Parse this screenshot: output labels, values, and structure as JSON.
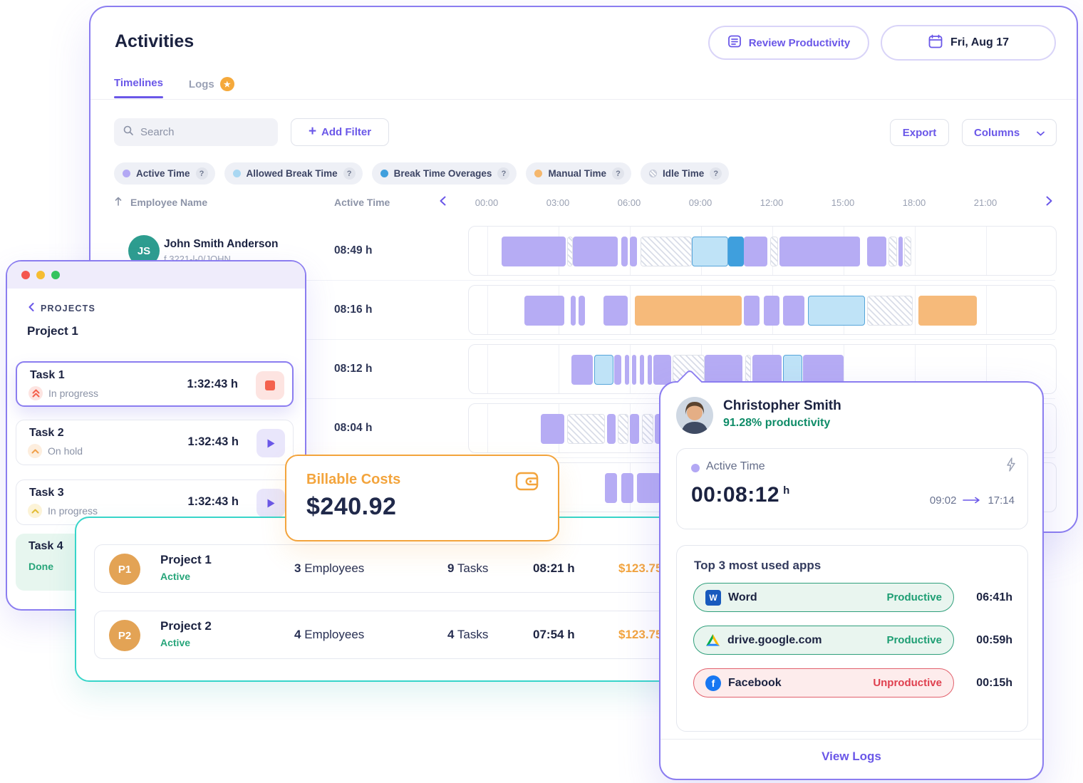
{
  "colors": {
    "accent_purple": "#6a57e8",
    "active_time": "#b6acf4",
    "allowed_break": "#a9d7f2",
    "break_overage": "#3f9fdd",
    "manual_time": "#f5b76d",
    "billable_orange": "#f3a43c",
    "teal_border": "#37d5c9",
    "green": "#27a57a",
    "red": "#df3f4e"
  },
  "page": {
    "title": "Activities"
  },
  "header": {
    "review_button": "Review Productivity",
    "date_button": "Fri, Aug 17"
  },
  "tabs": [
    {
      "label": "Timelines",
      "active": true
    },
    {
      "label": "Logs",
      "badge": "star"
    }
  ],
  "toolbar": {
    "search_placeholder": "Search",
    "add_filter": "Add Filter",
    "export": "Export",
    "columns": "Columns"
  },
  "legend": [
    {
      "label": "Active Time",
      "color": "#b3a8f4"
    },
    {
      "label": "Allowed Break Time",
      "color": "#a9d7f2"
    },
    {
      "label": "Break Time Overages",
      "color": "#3f9fdd"
    },
    {
      "label": "Manual Time",
      "color": "#f5b76d"
    },
    {
      "label": "Idle Time",
      "hatch": true
    }
  ],
  "timeline_table": {
    "columns": {
      "employee": "Employee Name",
      "active_time": "Active Time"
    },
    "hours": [
      "00:00",
      "03:00",
      "06:00",
      "09:00",
      "12:00",
      "15:00",
      "18:00",
      "21:00"
    ],
    "rows": [
      {
        "name": "John Smith Anderson",
        "subtitle": "f.3221-l-0/JOHN",
        "initials": "JS",
        "active_time": "08:49 h",
        "segments": [
          [
            0.6,
            3.3,
            "active"
          ],
          [
            3.35,
            3.6,
            "idle"
          ],
          [
            3.6,
            5.5,
            "active"
          ],
          [
            5.65,
            5.9,
            "active"
          ],
          [
            6.0,
            6.3,
            "active"
          ],
          [
            6.45,
            8.6,
            "idle"
          ],
          [
            8.6,
            10.15,
            "break"
          ],
          [
            10.15,
            10.8,
            "overage"
          ],
          [
            10.8,
            11.8,
            "active"
          ],
          [
            11.9,
            12.25,
            "idle"
          ],
          [
            12.3,
            15.7,
            "active"
          ],
          [
            16.0,
            16.8,
            "active"
          ],
          [
            16.9,
            17.25,
            "idle"
          ],
          [
            17.3,
            17.5,
            "active"
          ],
          [
            17.55,
            17.85,
            "idle"
          ]
        ]
      },
      {
        "active_time": "08:16 h",
        "segments": [
          [
            1.55,
            3.25,
            "active"
          ],
          [
            3.5,
            3.72,
            "active"
          ],
          [
            3.85,
            4.1,
            "active"
          ],
          [
            4.9,
            5.9,
            "active"
          ],
          [
            6.2,
            10.7,
            "manual"
          ],
          [
            10.8,
            11.45,
            "active"
          ],
          [
            11.65,
            12.3,
            "active"
          ],
          [
            12.45,
            13.35,
            "active"
          ],
          [
            13.5,
            15.9,
            "break"
          ],
          [
            16.0,
            17.9,
            "idle"
          ],
          [
            18.15,
            20.6,
            "manual"
          ]
        ]
      },
      {
        "active_time": "08:12 h",
        "segments": [
          [
            3.55,
            4.45,
            "active"
          ],
          [
            4.5,
            5.3,
            "break"
          ],
          [
            5.35,
            5.65,
            "active"
          ],
          [
            5.78,
            5.96,
            "active"
          ],
          [
            6.1,
            6.28,
            "active"
          ],
          [
            6.42,
            6.6,
            "active"
          ],
          [
            6.74,
            6.92,
            "active"
          ],
          [
            7.0,
            7.75,
            "active"
          ],
          [
            7.8,
            9.15,
            "idle"
          ],
          [
            9.15,
            10.75,
            "active"
          ],
          [
            10.85,
            11.1,
            "idle"
          ],
          [
            11.15,
            12.4,
            "active"
          ],
          [
            12.45,
            13.25,
            "break"
          ],
          [
            13.3,
            15.0,
            "active"
          ]
        ]
      },
      {
        "active_time": "08:04 h",
        "segments": [
          [
            2.25,
            3.25,
            "active"
          ],
          [
            3.35,
            4.95,
            "idle"
          ],
          [
            5.05,
            5.4,
            "active"
          ],
          [
            5.5,
            5.95,
            "idle"
          ],
          [
            6.0,
            6.4,
            "active"
          ],
          [
            6.5,
            7.0,
            "idle"
          ],
          [
            7.05,
            7.6,
            "active"
          ]
        ]
      },
      {
        "active_time": "",
        "segments": [
          [
            4.95,
            5.45,
            "active"
          ],
          [
            5.65,
            6.15,
            "active"
          ],
          [
            6.3,
            7.3,
            "active"
          ],
          [
            7.45,
            8.2,
            "active"
          ]
        ]
      }
    ]
  },
  "projects_panel": {
    "back": "PROJECTS",
    "project": "Project 1",
    "tasks": [
      {
        "name": "Task 1",
        "status": "In progress",
        "time": "1:32:43 h",
        "priority": "high",
        "action": "stop",
        "active": true
      },
      {
        "name": "Task 2",
        "status": "On hold",
        "time": "1:32:43 h",
        "priority": "medium",
        "action": "play"
      },
      {
        "name": "Task 3",
        "status": "In progress",
        "time": "1:32:43 h",
        "priority": "low",
        "action": "play"
      },
      {
        "name": "Task 4",
        "status": "Done",
        "done": true
      }
    ]
  },
  "billable": {
    "label": "Billable Costs",
    "amount": "$240.92"
  },
  "projects_table": {
    "rows": [
      {
        "initials": "P1",
        "name": "Project 1",
        "status": "Active",
        "employees": "3",
        "employees_label": "Employees",
        "tasks": "9",
        "tasks_label": "Tasks",
        "time": "08:21 h",
        "cost": "$123.75"
      },
      {
        "initials": "P2",
        "name": "Project 2",
        "status": "Active",
        "employees": "4",
        "employees_label": "Employees",
        "tasks": "4",
        "tasks_label": "Tasks",
        "time": "07:54 h",
        "cost": "$123.75"
      }
    ]
  },
  "popover": {
    "name": "Christopher Smith",
    "productivity": "91.28% productivity",
    "active_time": {
      "label": "Active Time",
      "value": "00:08:12",
      "unit": "h",
      "start": "09:02",
      "end": "17:14"
    },
    "apps": {
      "heading": "Top 3 most used apps",
      "items": [
        {
          "name": "Word",
          "status": "Productive",
          "time": "06:41h",
          "icon": "word",
          "positive": true
        },
        {
          "name": "drive.google.com",
          "status": "Productive",
          "time": "00:59h",
          "icon": "drive",
          "positive": true
        },
        {
          "name": "Facebook",
          "status": "Unproductive",
          "time": "00:15h",
          "icon": "facebook",
          "positive": false
        }
      ]
    },
    "view_logs": "View Logs"
  }
}
